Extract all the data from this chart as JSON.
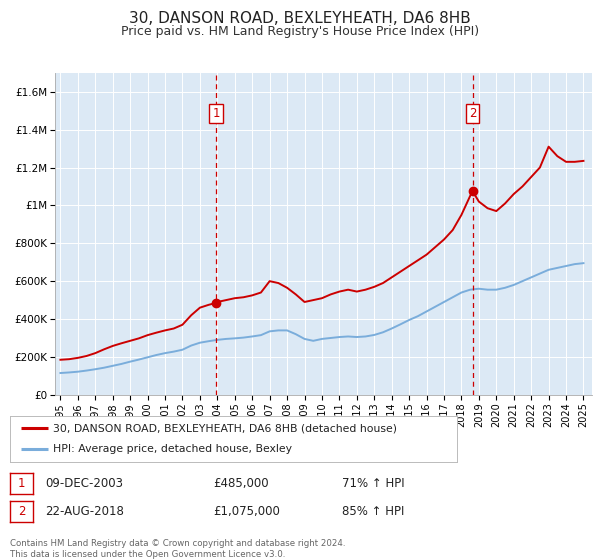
{
  "title": "30, DANSON ROAD, BEXLEYHEATH, DA6 8HB",
  "subtitle": "Price paid vs. HM Land Registry's House Price Index (HPI)",
  "title_fontsize": 11,
  "subtitle_fontsize": 9,
  "background_color": "#ffffff",
  "plot_bg_color": "#dce9f5",
  "grid_color": "#ffffff",
  "red_line_color": "#cc0000",
  "blue_line_color": "#7aaddb",
  "ylim": [
    0,
    1700000
  ],
  "yticks": [
    0,
    200000,
    400000,
    600000,
    800000,
    1000000,
    1200000,
    1400000,
    1600000
  ],
  "ytick_labels": [
    "£0",
    "£200K",
    "£400K",
    "£600K",
    "£800K",
    "£1M",
    "£1.2M",
    "£1.4M",
    "£1.6M"
  ],
  "xlim_start": 1994.7,
  "xlim_end": 2025.5,
  "xticks": [
    1995,
    1996,
    1997,
    1998,
    1999,
    2000,
    2001,
    2002,
    2003,
    2004,
    2005,
    2006,
    2007,
    2008,
    2009,
    2010,
    2011,
    2012,
    2013,
    2014,
    2015,
    2016,
    2017,
    2018,
    2019,
    2020,
    2021,
    2022,
    2023,
    2024,
    2025
  ],
  "sale1_x": 2003.92,
  "sale1_y": 485000,
  "sale1_label": "1",
  "sale2_x": 2018.64,
  "sale2_y": 1075000,
  "sale2_label": "2",
  "legend_label_red": "30, DANSON ROAD, BEXLEYHEATH, DA6 8HB (detached house)",
  "legend_label_blue": "HPI: Average price, detached house, Bexley",
  "footer_text": "Contains HM Land Registry data © Crown copyright and database right 2024.\nThis data is licensed under the Open Government Licence v3.0.",
  "red_line_data_x": [
    1995.0,
    1995.5,
    1996.0,
    1996.5,
    1997.0,
    1997.5,
    1998.0,
    1998.5,
    1999.0,
    1999.5,
    2000.0,
    2000.5,
    2001.0,
    2001.5,
    2002.0,
    2002.5,
    2003.0,
    2003.5,
    2003.92,
    2004.0,
    2004.5,
    2005.0,
    2005.5,
    2006.0,
    2006.5,
    2007.0,
    2007.5,
    2008.0,
    2008.5,
    2009.0,
    2009.5,
    2010.0,
    2010.5,
    2011.0,
    2011.5,
    2012.0,
    2012.5,
    2013.0,
    2013.5,
    2014.0,
    2014.5,
    2015.0,
    2015.5,
    2016.0,
    2016.5,
    2017.0,
    2017.5,
    2018.0,
    2018.5,
    2018.64,
    2019.0,
    2019.5,
    2020.0,
    2020.5,
    2021.0,
    2021.5,
    2022.0,
    2022.5,
    2023.0,
    2023.5,
    2024.0,
    2024.5,
    2025.0
  ],
  "red_line_data_y": [
    185000,
    188000,
    195000,
    205000,
    220000,
    240000,
    258000,
    272000,
    285000,
    298000,
    315000,
    328000,
    340000,
    350000,
    370000,
    420000,
    460000,
    475000,
    485000,
    490000,
    500000,
    510000,
    515000,
    525000,
    540000,
    600000,
    590000,
    565000,
    530000,
    490000,
    500000,
    510000,
    530000,
    545000,
    555000,
    545000,
    555000,
    570000,
    590000,
    620000,
    650000,
    680000,
    710000,
    740000,
    780000,
    820000,
    870000,
    950000,
    1050000,
    1075000,
    1020000,
    985000,
    970000,
    1010000,
    1060000,
    1100000,
    1150000,
    1200000,
    1310000,
    1260000,
    1230000,
    1230000,
    1235000
  ],
  "blue_line_data_x": [
    1995.0,
    1995.5,
    1996.0,
    1996.5,
    1997.0,
    1997.5,
    1998.0,
    1998.5,
    1999.0,
    1999.5,
    2000.0,
    2000.5,
    2001.0,
    2001.5,
    2002.0,
    2002.5,
    2003.0,
    2003.5,
    2004.0,
    2004.5,
    2005.0,
    2005.5,
    2006.0,
    2006.5,
    2007.0,
    2007.5,
    2008.0,
    2008.5,
    2009.0,
    2009.5,
    2010.0,
    2010.5,
    2011.0,
    2011.5,
    2012.0,
    2012.5,
    2013.0,
    2013.5,
    2014.0,
    2014.5,
    2015.0,
    2015.5,
    2016.0,
    2016.5,
    2017.0,
    2017.5,
    2018.0,
    2018.5,
    2019.0,
    2019.5,
    2020.0,
    2020.5,
    2021.0,
    2021.5,
    2022.0,
    2022.5,
    2023.0,
    2023.5,
    2024.0,
    2024.5,
    2025.0
  ],
  "blue_line_data_y": [
    115000,
    118000,
    122000,
    128000,
    135000,
    143000,
    153000,
    163000,
    175000,
    186000,
    198000,
    210000,
    220000,
    228000,
    238000,
    260000,
    275000,
    283000,
    290000,
    295000,
    298000,
    302000,
    308000,
    315000,
    335000,
    340000,
    340000,
    320000,
    295000,
    285000,
    295000,
    300000,
    305000,
    308000,
    305000,
    308000,
    316000,
    330000,
    350000,
    372000,
    395000,
    415000,
    440000,
    465000,
    490000,
    515000,
    540000,
    555000,
    560000,
    555000,
    555000,
    565000,
    580000,
    600000,
    620000,
    640000,
    660000,
    670000,
    680000,
    690000,
    695000
  ]
}
